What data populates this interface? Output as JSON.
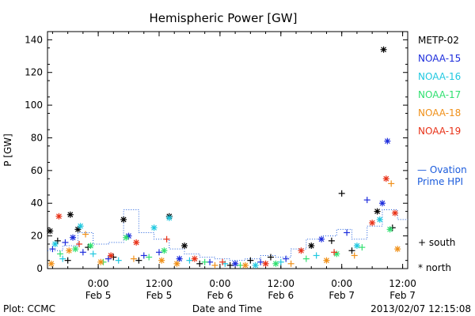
{
  "chart_data": {
    "type": "scatter",
    "title": "Hemispheric Power [GW]",
    "ylabel": "P [GW]",
    "xlabel": "Date and Time",
    "ylim": [
      0,
      145
    ],
    "yticks": [
      0,
      20,
      40,
      60,
      80,
      100,
      120,
      140
    ],
    "xlim": [
      "2013-02-04 14:00",
      "2013-02-07 13:00"
    ],
    "xticks": [
      {
        "x": "2013-02-05 00:00",
        "time": "0:00",
        "date": "Feb 5"
      },
      {
        "x": "2013-02-05 12:00",
        "time": "12:00",
        "date": "Feb 5"
      },
      {
        "x": "2013-02-06 00:00",
        "time": "0:00",
        "date": "Feb 6"
      },
      {
        "x": "2013-02-06 12:00",
        "time": "12:00",
        "date": "Feb 6"
      },
      {
        "x": "2013-02-07 00:00",
        "time": "0:00",
        "date": "Feb 7"
      },
      {
        "x": "2013-02-07 12:00",
        "time": "12:00",
        "date": "Feb 7"
      }
    ],
    "series": [
      {
        "name": "METP-02",
        "color": "#000000",
        "points": [
          {
            "x": "2013-02-04 14:30",
            "y": 23,
            "hemi": "north"
          },
          {
            "x": "2013-02-04 16:00",
            "y": 17,
            "hemi": "south"
          },
          {
            "x": "2013-02-04 18:00",
            "y": 5,
            "hemi": "south"
          },
          {
            "x": "2013-02-04 18:30",
            "y": 33,
            "hemi": "north"
          },
          {
            "x": "2013-02-04 20:00",
            "y": 24,
            "hemi": "north"
          },
          {
            "x": "2013-02-04 22:00",
            "y": 13,
            "hemi": "south"
          },
          {
            "x": "2013-02-05 03:00",
            "y": 7,
            "hemi": "south"
          },
          {
            "x": "2013-02-05 05:00",
            "y": 30,
            "hemi": "north"
          },
          {
            "x": "2013-02-05 08:00",
            "y": 5,
            "hemi": "south"
          },
          {
            "x": "2013-02-05 14:00",
            "y": 32,
            "hemi": "north"
          },
          {
            "x": "2013-02-05 17:00",
            "y": 14,
            "hemi": "north"
          },
          {
            "x": "2013-02-05 20:00",
            "y": 3,
            "hemi": "south"
          },
          {
            "x": "2013-02-06 02:00",
            "y": 2,
            "hemi": "south"
          },
          {
            "x": "2013-02-06 06:00",
            "y": 5,
            "hemi": "south"
          },
          {
            "x": "2013-02-06 10:00",
            "y": 7,
            "hemi": "south"
          },
          {
            "x": "2013-02-06 18:00",
            "y": 14,
            "hemi": "north"
          },
          {
            "x": "2013-02-06 22:00",
            "y": 17,
            "hemi": "south"
          },
          {
            "x": "2013-02-07 00:00",
            "y": 46,
            "hemi": "south"
          },
          {
            "x": "2013-02-07 02:00",
            "y": 11,
            "hemi": "south"
          },
          {
            "x": "2013-02-07 07:00",
            "y": 35,
            "hemi": "north"
          },
          {
            "x": "2013-02-07 08:15",
            "y": 134,
            "hemi": "north"
          },
          {
            "x": "2013-02-07 10:00",
            "y": 25,
            "hemi": "south"
          }
        ]
      },
      {
        "name": "NOAA-15",
        "color": "#1c2cdc",
        "points": [
          {
            "x": "2013-02-04 15:00",
            "y": 12,
            "hemi": "south"
          },
          {
            "x": "2013-02-04 17:30",
            "y": 16,
            "hemi": "south"
          },
          {
            "x": "2013-02-04 19:00",
            "y": 19,
            "hemi": "north"
          },
          {
            "x": "2013-02-04 21:00",
            "y": 10,
            "hemi": "south"
          },
          {
            "x": "2013-02-05 02:00",
            "y": 6,
            "hemi": "south"
          },
          {
            "x": "2013-02-05 06:00",
            "y": 20,
            "hemi": "north"
          },
          {
            "x": "2013-02-05 09:00",
            "y": 8,
            "hemi": "south"
          },
          {
            "x": "2013-02-05 12:00",
            "y": 10,
            "hemi": "south"
          },
          {
            "x": "2013-02-05 16:00",
            "y": 6,
            "hemi": "north"
          },
          {
            "x": "2013-02-05 22:00",
            "y": 4,
            "hemi": "south"
          },
          {
            "x": "2013-02-06 03:00",
            "y": 3,
            "hemi": "north"
          },
          {
            "x": "2013-02-06 08:00",
            "y": 4,
            "hemi": "south"
          },
          {
            "x": "2013-02-06 13:00",
            "y": 6,
            "hemi": "south"
          },
          {
            "x": "2013-02-06 20:00",
            "y": 18,
            "hemi": "north"
          },
          {
            "x": "2013-02-07 01:00",
            "y": 22,
            "hemi": "south"
          },
          {
            "x": "2013-02-07 05:00",
            "y": 42,
            "hemi": "south"
          },
          {
            "x": "2013-02-07 08:00",
            "y": 40,
            "hemi": "north"
          },
          {
            "x": "2013-02-07 09:00",
            "y": 78,
            "hemi": "north"
          }
        ]
      },
      {
        "name": "NOAA-16",
        "color": "#20c8e0",
        "points": [
          {
            "x": "2013-02-04 15:30",
            "y": 15,
            "hemi": "north"
          },
          {
            "x": "2013-02-04 17:00",
            "y": 6,
            "hemi": "south"
          },
          {
            "x": "2013-02-04 20:30",
            "y": 26,
            "hemi": "north"
          },
          {
            "x": "2013-02-04 23:00",
            "y": 9,
            "hemi": "south"
          },
          {
            "x": "2013-02-05 04:00",
            "y": 5,
            "hemi": "south"
          },
          {
            "x": "2013-02-05 11:00",
            "y": 25,
            "hemi": "north"
          },
          {
            "x": "2013-02-05 14:00",
            "y": 31,
            "hemi": "north"
          },
          {
            "x": "2013-02-05 18:00",
            "y": 5,
            "hemi": "south"
          },
          {
            "x": "2013-02-06 01:00",
            "y": 3,
            "hemi": "south"
          },
          {
            "x": "2013-02-06 07:00",
            "y": 2,
            "hemi": "north"
          },
          {
            "x": "2013-02-06 12:00",
            "y": 4,
            "hemi": "south"
          },
          {
            "x": "2013-02-06 19:00",
            "y": 8,
            "hemi": "south"
          },
          {
            "x": "2013-02-07 03:00",
            "y": 14,
            "hemi": "north"
          },
          {
            "x": "2013-02-07 07:30",
            "y": 30,
            "hemi": "north"
          }
        ]
      },
      {
        "name": "NOAA-17",
        "color": "#30e070",
        "points": [
          {
            "x": "2013-02-04 16:30",
            "y": 9,
            "hemi": "south"
          },
          {
            "x": "2013-02-04 19:30",
            "y": 12,
            "hemi": "north"
          },
          {
            "x": "2013-02-04 22:30",
            "y": 14,
            "hemi": "north"
          },
          {
            "x": "2013-02-05 01:00",
            "y": 4,
            "hemi": "south"
          },
          {
            "x": "2013-02-05 05:30",
            "y": 19,
            "hemi": "north"
          },
          {
            "x": "2013-02-05 10:00",
            "y": 7,
            "hemi": "south"
          },
          {
            "x": "2013-02-05 13:00",
            "y": 11,
            "hemi": "north"
          },
          {
            "x": "2013-02-05 21:00",
            "y": 4,
            "hemi": "south"
          },
          {
            "x": "2013-02-06 04:00",
            "y": 2,
            "hemi": "south"
          },
          {
            "x": "2013-02-06 11:00",
            "y": 3,
            "hemi": "north"
          },
          {
            "x": "2013-02-06 17:00",
            "y": 6,
            "hemi": "south"
          },
          {
            "x": "2013-02-06 23:00",
            "y": 9,
            "hemi": "north"
          },
          {
            "x": "2013-02-07 04:00",
            "y": 13,
            "hemi": "south"
          },
          {
            "x": "2013-02-07 09:30",
            "y": 24,
            "hemi": "north"
          }
        ]
      },
      {
        "name": "NOAA-18",
        "color": "#f09018",
        "points": [
          {
            "x": "2013-02-04 14:45",
            "y": 3,
            "hemi": "north"
          },
          {
            "x": "2013-02-04 18:15",
            "y": 11,
            "hemi": "north"
          },
          {
            "x": "2013-02-04 21:30",
            "y": 21,
            "hemi": "south"
          },
          {
            "x": "2013-02-05 00:30",
            "y": 4,
            "hemi": "north"
          },
          {
            "x": "2013-02-05 07:00",
            "y": 6,
            "hemi": "south"
          },
          {
            "x": "2013-02-05 12:30",
            "y": 5,
            "hemi": "north"
          },
          {
            "x": "2013-02-05 15:30",
            "y": 3,
            "hemi": "north"
          },
          {
            "x": "2013-02-05 23:00",
            "y": 2,
            "hemi": "south"
          },
          {
            "x": "2013-02-06 05:00",
            "y": 2,
            "hemi": "north"
          },
          {
            "x": "2013-02-06 14:00",
            "y": 3,
            "hemi": "south"
          },
          {
            "x": "2013-02-06 21:00",
            "y": 5,
            "hemi": "north"
          },
          {
            "x": "2013-02-07 02:30",
            "y": 8,
            "hemi": "south"
          },
          {
            "x": "2013-02-07 09:45",
            "y": 52,
            "hemi": "south"
          },
          {
            "x": "2013-02-07 11:00",
            "y": 12,
            "hemi": "north"
          }
        ]
      },
      {
        "name": "NOAA-19",
        "color": "#e83218",
        "points": [
          {
            "x": "2013-02-04 16:15",
            "y": 32,
            "hemi": "north"
          },
          {
            "x": "2013-02-04 20:15",
            "y": 15,
            "hemi": "south"
          },
          {
            "x": "2013-02-05 02:30",
            "y": 8,
            "hemi": "north"
          },
          {
            "x": "2013-02-05 07:30",
            "y": 16,
            "hemi": "north"
          },
          {
            "x": "2013-02-05 13:30",
            "y": 18,
            "hemi": "south"
          },
          {
            "x": "2013-02-05 19:00",
            "y": 6,
            "hemi": "north"
          },
          {
            "x": "2013-02-06 00:30",
            "y": 4,
            "hemi": "south"
          },
          {
            "x": "2013-02-06 09:00",
            "y": 3,
            "hemi": "north"
          },
          {
            "x": "2013-02-06 16:00",
            "y": 11,
            "hemi": "north"
          },
          {
            "x": "2013-02-06 22:30",
            "y": 10,
            "hemi": "south"
          },
          {
            "x": "2013-02-07 06:00",
            "y": 28,
            "hemi": "north"
          },
          {
            "x": "2013-02-07 08:45",
            "y": 55,
            "hemi": "north"
          },
          {
            "x": "2013-02-07 10:30",
            "y": 34,
            "hemi": "north"
          }
        ]
      }
    ],
    "ovation": {
      "name": "Ovation Prime HPI",
      "color": "#1c5cdc",
      "points": [
        {
          "x": "2013-02-04 14:00",
          "y": 11
        },
        {
          "x": "2013-02-04 17:00",
          "y": 14
        },
        {
          "x": "2013-02-04 20:00",
          "y": 22
        },
        {
          "x": "2013-02-04 23:00",
          "y": 15
        },
        {
          "x": "2013-02-05 02:00",
          "y": 16
        },
        {
          "x": "2013-02-05 05:00",
          "y": 36
        },
        {
          "x": "2013-02-05 08:00",
          "y": 22
        },
        {
          "x": "2013-02-05 11:00",
          "y": 18
        },
        {
          "x": "2013-02-05 14:00",
          "y": 12
        },
        {
          "x": "2013-02-05 17:00",
          "y": 9
        },
        {
          "x": "2013-02-05 20:00",
          "y": 7
        },
        {
          "x": "2013-02-05 23:00",
          "y": 6
        },
        {
          "x": "2013-02-06 02:00",
          "y": 5
        },
        {
          "x": "2013-02-06 05:00",
          "y": 6
        },
        {
          "x": "2013-02-06 08:00",
          "y": 8
        },
        {
          "x": "2013-02-06 11:00",
          "y": 7
        },
        {
          "x": "2013-02-06 14:00",
          "y": 12
        },
        {
          "x": "2013-02-06 17:00",
          "y": 18
        },
        {
          "x": "2013-02-06 20:00",
          "y": 20
        },
        {
          "x": "2013-02-06 23:00",
          "y": 24
        },
        {
          "x": "2013-02-07 02:00",
          "y": 18
        },
        {
          "x": "2013-02-07 05:00",
          "y": 26
        },
        {
          "x": "2013-02-07 08:00",
          "y": 36
        },
        {
          "x": "2013-02-07 11:00",
          "y": 30
        },
        {
          "x": "2013-02-07 13:00",
          "y": 30
        }
      ]
    },
    "legend": {
      "placement": "right",
      "ovation_lines": [
        "— Ovation",
        "Prime HPI"
      ],
      "south_label": "+ south",
      "north_label": "* north"
    }
  },
  "footer": {
    "left": "Plot: CCMC",
    "right": "2013/02/07 12:15:08"
  }
}
